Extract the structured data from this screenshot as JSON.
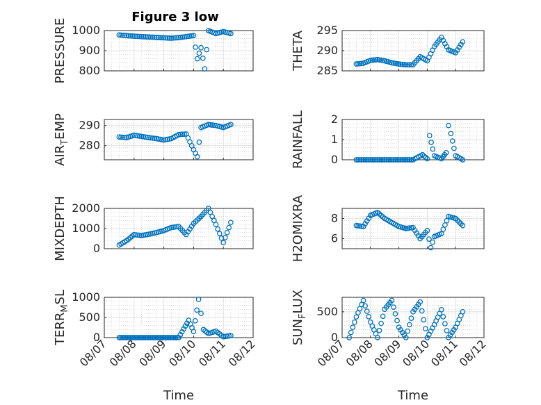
{
  "figure": {
    "title": "Figure 3 low"
  },
  "colors": {
    "marker": "#0072BD",
    "grid": "#c8c8c8",
    "axis": "#262626"
  },
  "chart_data": [
    {
      "type": "scatter",
      "ylabel": "PRESSURE",
      "yticks": [
        "800",
        "900",
        "1000"
      ],
      "ylim": [
        800,
        1000
      ],
      "x": [
        "08/07 12:00",
        "08/07 18:00",
        "08/08 00:00",
        "08/08 06:00",
        "08/08 12:00",
        "08/08 18:00",
        "08/09 00:00",
        "08/09 06:00",
        "08/09 12:00",
        "08/09 18:00",
        "08/10 00:00",
        "08/10 03:00",
        "08/10 06:00",
        "08/10 09:00",
        "08/10 12:00",
        "08/10 18:00",
        "08/11 00:00",
        "08/11 06:00"
      ],
      "y": [
        978,
        975,
        972,
        970,
        968,
        966,
        964,
        962,
        965,
        970,
        975,
        860,
        915,
        810,
        1000,
        985,
        995,
        985
      ]
    },
    {
      "type": "scatter",
      "ylabel": "THETA",
      "yticks": [
        "285",
        "290",
        "295"
      ],
      "ylim": [
        285,
        295
      ],
      "x": [
        "08/07 12:00",
        "08/07 18:00",
        "08/08 00:00",
        "08/08 06:00",
        "08/08 12:00",
        "08/08 18:00",
        "08/09 00:00",
        "08/09 06:00",
        "08/09 12:00",
        "08/09 18:00",
        "08/10 00:00",
        "08/10 06:00",
        "08/10 12:00",
        "08/10 18:00",
        "08/11 00:00",
        "08/11 06:00"
      ],
      "y": [
        286.7,
        286.9,
        287.6,
        287.8,
        287.5,
        287.0,
        286.7,
        286.5,
        286.5,
        288.5,
        287.5,
        291.0,
        293.3,
        290.2,
        289.5,
        292.2
      ]
    },
    {
      "type": "scatter",
      "ylabel": "AIR_TEMP",
      "yticks": [
        "280",
        "290"
      ],
      "ylim": [
        273,
        293
      ],
      "x": [
        "08/07 12:00",
        "08/07 18:00",
        "08/08 00:00",
        "08/08 06:00",
        "08/08 12:00",
        "08/08 18:00",
        "08/09 00:00",
        "08/09 06:00",
        "08/09 12:00",
        "08/09 18:00",
        "08/10 00:00",
        "08/10 03:00",
        "08/10 06:00",
        "08/10 12:00",
        "08/10 18:00",
        "08/11 00:00",
        "08/11 06:00"
      ],
      "y": [
        284.3,
        284.0,
        285.2,
        284.6,
        284.0,
        283.5,
        282.8,
        283.5,
        285.5,
        285.8,
        278.0,
        274.5,
        289.0,
        290.5,
        290.0,
        289.0,
        290.5
      ]
    },
    {
      "type": "scatter",
      "ylabel": "RAINFALL",
      "yticks": [
        "0",
        "1",
        "2"
      ],
      "ylim": [
        0,
        2
      ],
      "x": [
        "08/07 12:00",
        "08/08 00:00",
        "08/08 12:00",
        "08/09 00:00",
        "08/09 12:00",
        "08/09 20:00",
        "08/10 00:00",
        "08/10 02:00",
        "08/10 06:00",
        "08/10 12:00",
        "08/10 16:00",
        "08/10 18:00",
        "08/10 20:00",
        "08/11 00:00",
        "08/11 06:00"
      ],
      "y": [
        0,
        0,
        0,
        0,
        0,
        0.25,
        0.05,
        1.2,
        0.2,
        0.05,
        0.35,
        1.7,
        1.3,
        0.2,
        0
      ]
    },
    {
      "type": "scatter",
      "ylabel": "MIXDEPTH",
      "yticks": [
        "0",
        "1000",
        "2000"
      ],
      "ylim": [
        0,
        2000
      ],
      "x": [
        "08/07 12:00",
        "08/07 18:00",
        "08/08 00:00",
        "08/08 06:00",
        "08/08 12:00",
        "08/08 18:00",
        "08/09 00:00",
        "08/09 06:00",
        "08/09 12:00",
        "08/09 18:00",
        "08/10 00:00",
        "08/10 06:00",
        "08/10 12:00",
        "08/10 18:00",
        "08/11 00:00",
        "08/11 06:00"
      ],
      "y": [
        180,
        400,
        700,
        650,
        720,
        800,
        900,
        1050,
        1100,
        700,
        1250,
        1600,
        2000,
        1200,
        300,
        1300
      ]
    },
    {
      "type": "scatter",
      "ylabel": "H2OMIXRA",
      "yticks": [
        "6",
        "8"
      ],
      "ylim": [
        5,
        9
      ],
      "x": [
        "08/07 12:00",
        "08/07 18:00",
        "08/08 00:00",
        "08/08 06:00",
        "08/08 12:00",
        "08/08 18:00",
        "08/09 00:00",
        "08/09 06:00",
        "08/09 12:00",
        "08/09 18:00",
        "08/10 00:00",
        "08/10 03:00",
        "08/10 06:00",
        "08/10 12:00",
        "08/10 18:00",
        "08/11 00:00",
        "08/11 06:00"
      ],
      "y": [
        7.3,
        7.2,
        8.3,
        8.6,
        8.0,
        7.6,
        7.2,
        7.0,
        7.1,
        6.0,
        6.8,
        5.1,
        6.2,
        6.5,
        8.2,
        8.0,
        7.3
      ]
    },
    {
      "type": "scatter",
      "ylabel": "TERR_MSL",
      "yticks": [
        "0",
        "500",
        "1000"
      ],
      "ylim": [
        0,
        1000
      ],
      "x": [
        "08/07 12:00",
        "08/08 00:00",
        "08/08 12:00",
        "08/09 00:00",
        "08/09 12:00",
        "08/09 20:00",
        "08/10 00:00",
        "08/10 04:00",
        "08/10 06:00",
        "08/10 08:00",
        "08/10 12:00",
        "08/10 18:00",
        "08/11 00:00",
        "08/11 06:00"
      ],
      "y": [
        0,
        0,
        0,
        0,
        0,
        430,
        150,
        950,
        600,
        200,
        100,
        160,
        20,
        50
      ]
    },
    {
      "type": "scatter",
      "ylabel": "SUN_FLUX",
      "yticks": [
        "0",
        "500"
      ],
      "ylim": [
        0,
        780
      ],
      "x": [
        "08/07 06:00",
        "08/07 12:00",
        "08/07 18:00",
        "08/08 00:00",
        "08/08 06:00",
        "08/08 12:00",
        "08/08 18:00",
        "08/09 00:00",
        "08/09 06:00",
        "08/09 12:00",
        "08/09 18:00",
        "08/10 00:00",
        "08/10 06:00",
        "08/10 12:00",
        "08/10 18:00",
        "08/11 00:00",
        "08/11 06:00"
      ],
      "y": [
        0,
        400,
        720,
        300,
        0,
        550,
        720,
        200,
        0,
        500,
        690,
        0,
        250,
        540,
        0,
        200,
        500
      ]
    }
  ],
  "xaxis": {
    "xlabel": "Time",
    "ticklabels": [
      "08/07",
      "08/08",
      "08/09",
      "08/10",
      "08/11",
      "08/12"
    ],
    "range": [
      "08/07 00:00",
      "08/12 00:00"
    ]
  }
}
